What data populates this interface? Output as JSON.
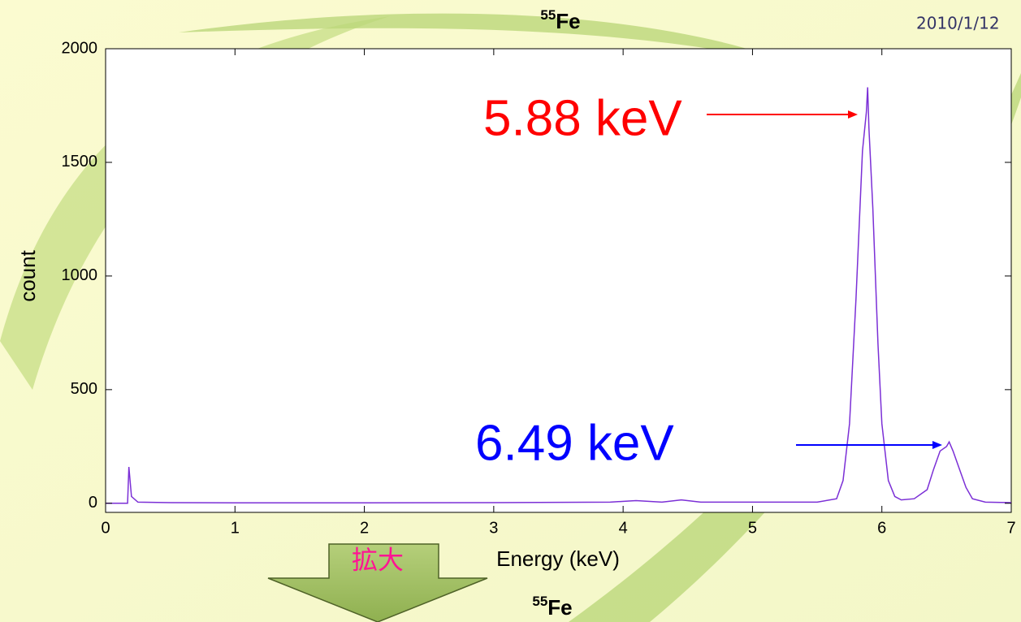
{
  "chart_data": {
    "type": "line",
    "title_mass": "55",
    "title_element": "Fe",
    "date": "2010/1/12",
    "xlabel": "Energy (keV)",
    "ylabel": "count",
    "xlim": [
      0,
      7
    ],
    "xticks": [
      0,
      1,
      2,
      3,
      4,
      5,
      6,
      7
    ],
    "ylim": [
      -40,
      2000
    ],
    "yticks": [
      0,
      500,
      1000,
      1500,
      2000
    ],
    "series": [
      {
        "color": "#7b2fd6",
        "x": [
          0,
          0.17,
          0.18,
          0.2,
          0.25,
          0.5,
          1,
          2,
          3,
          3.9,
          4.1,
          4.3,
          4.45,
          4.6,
          5,
          5.5,
          5.65,
          5.7,
          5.75,
          5.8,
          5.85,
          5.88,
          5.89,
          5.9,
          5.93,
          5.97,
          6.0,
          6.05,
          6.1,
          6.15,
          6.25,
          6.35,
          6.4,
          6.45,
          6.5,
          6.52,
          6.55,
          6.6,
          6.65,
          6.7,
          6.8,
          7
        ],
        "values": [
          0,
          0,
          160,
          30,
          5,
          3,
          2,
          2,
          3,
          5,
          12,
          5,
          15,
          5,
          5,
          5,
          20,
          100,
          350,
          900,
          1550,
          1720,
          1830,
          1650,
          1300,
          700,
          350,
          100,
          30,
          15,
          20,
          60,
          150,
          230,
          250,
          270,
          230,
          150,
          70,
          20,
          5,
          3
        ]
      }
    ],
    "annotations": [
      {
        "text": "5.88 keV",
        "color": "#ff0000"
      },
      {
        "text": "6.49 keV",
        "color": "#0000ff"
      }
    ],
    "zoom_label": "拡大",
    "next_title_mass": "55",
    "next_title_element": "Fe"
  }
}
